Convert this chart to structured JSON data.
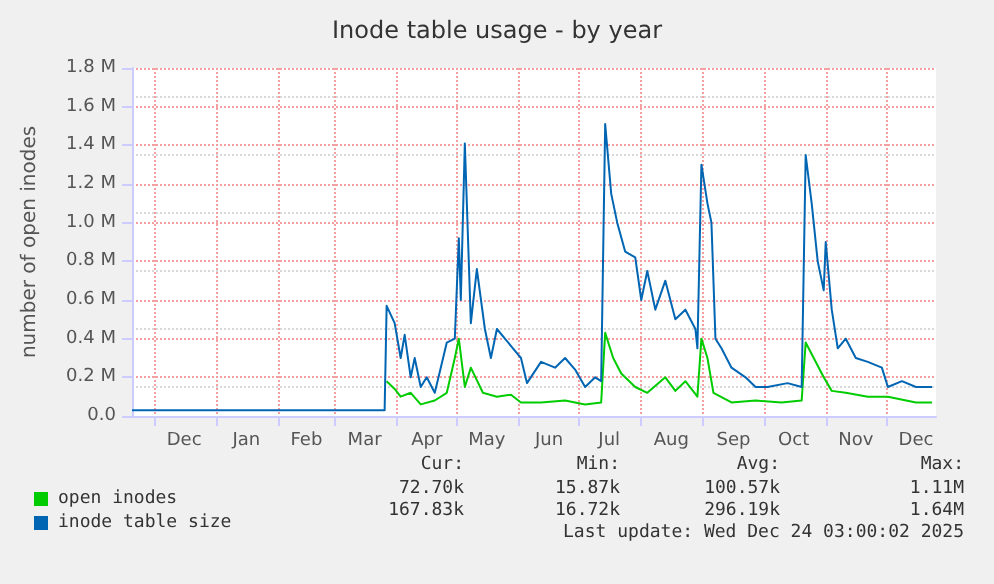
{
  "chart_data": {
    "type": "line",
    "title": "Inode table usage - by year",
    "ylabel": "number of open inodes",
    "xlim": [
      "2024-11-20",
      "2025-12-26"
    ],
    "xticks": [
      {
        "value": "2024-12-01",
        "label": null
      },
      {
        "value": "2024-12-16",
        "label": "Dec"
      },
      {
        "value": "2025-01-01",
        "label": null
      },
      {
        "value": "2025-01-16",
        "label": "Jan"
      },
      {
        "value": "2025-02-01",
        "label": null
      },
      {
        "value": "2025-02-15",
        "label": "Feb"
      },
      {
        "value": "2025-03-01",
        "label": null
      },
      {
        "value": "2025-03-16",
        "label": "Mar"
      },
      {
        "value": "2025-04-01",
        "label": null
      },
      {
        "value": "2025-04-16",
        "label": "Apr"
      },
      {
        "value": "2025-05-01",
        "label": null
      },
      {
        "value": "2025-05-16",
        "label": "May"
      },
      {
        "value": "2025-06-01",
        "label": null
      },
      {
        "value": "2025-06-16",
        "label": "Jun"
      },
      {
        "value": "2025-07-01",
        "label": null
      },
      {
        "value": "2025-07-16",
        "label": "Jul"
      },
      {
        "value": "2025-08-01",
        "label": null
      },
      {
        "value": "2025-08-16",
        "label": "Aug"
      },
      {
        "value": "2025-09-01",
        "label": null
      },
      {
        "value": "2025-09-16",
        "label": "Sep"
      },
      {
        "value": "2025-10-01",
        "label": null
      },
      {
        "value": "2025-10-16",
        "label": "Oct"
      },
      {
        "value": "2025-11-01",
        "label": null
      },
      {
        "value": "2025-11-16",
        "label": "Nov"
      },
      {
        "value": "2025-12-01",
        "label": null
      },
      {
        "value": "2025-12-16",
        "label": "Dec"
      }
    ],
    "ylim": [
      0,
      1.8
    ],
    "yticks": [
      {
        "value": 0,
        "label": "0.0"
      },
      {
        "value": 0.2,
        "label": "0.2 M"
      },
      {
        "value": 0.4,
        "label": "0.4 M"
      },
      {
        "value": 0.6,
        "label": "0.6 M"
      },
      {
        "value": 0.8,
        "label": "0.8 M"
      },
      {
        "value": 1.0,
        "label": "1.0 M"
      },
      {
        "value": 1.2,
        "label": "1.2 M"
      },
      {
        "value": 1.4,
        "label": "1.4 M"
      },
      {
        "value": 1.6,
        "label": "1.6 M"
      },
      {
        "value": 1.8,
        "label": "1.8 M"
      }
    ],
    "grid": true,
    "legend": "bottom left",
    "marker": "none",
    "line_style": "solid",
    "series": [
      {
        "name": "open inodes",
        "color": "#00cc00",
        "x": [
          "2025-03-27",
          "2025-03-31",
          "2025-04-03",
          "2025-04-08",
          "2025-04-13",
          "2025-04-20",
          "2025-04-26",
          "2025-04-30",
          "2025-05-02",
          "2025-05-05",
          "2025-05-08",
          "2025-05-14",
          "2025-05-21",
          "2025-05-28",
          "2025-06-02",
          "2025-06-12",
          "2025-06-24",
          "2025-07-04",
          "2025-07-12",
          "2025-07-14",
          "2025-07-18",
          "2025-07-22",
          "2025-07-29",
          "2025-08-04",
          "2025-08-13",
          "2025-08-18",
          "2025-08-23",
          "2025-08-29",
          "2025-08-31",
          "2025-09-03",
          "2025-09-06",
          "2025-09-15",
          "2025-09-27",
          "2025-10-10",
          "2025-10-20",
          "2025-10-22",
          "2025-10-26",
          "2025-10-31",
          "2025-11-04",
          "2025-11-11",
          "2025-11-22",
          "2025-12-02",
          "2025-12-16",
          "2025-12-24"
        ],
        "values": [
          0.18,
          0.14,
          0.1,
          0.12,
          0.06,
          0.08,
          0.12,
          0.3,
          0.4,
          0.15,
          0.25,
          0.12,
          0.1,
          0.11,
          0.07,
          0.07,
          0.08,
          0.06,
          0.07,
          0.43,
          0.3,
          0.22,
          0.15,
          0.12,
          0.2,
          0.13,
          0.18,
          0.1,
          0.4,
          0.3,
          0.12,
          0.07,
          0.08,
          0.07,
          0.08,
          0.38,
          0.3,
          0.2,
          0.13,
          0.12,
          0.1,
          0.1,
          0.07,
          0.07
        ]
      },
      {
        "name": "inode table size",
        "color": "#0066b3",
        "x": [
          "2024-11-20",
          "2024-12-15",
          "2025-01-15",
          "2025-02-15",
          "2025-03-26",
          "2025-03-27",
          "2025-03-31",
          "2025-04-03",
          "2025-04-05",
          "2025-04-08",
          "2025-04-10",
          "2025-04-13",
          "2025-04-16",
          "2025-04-20",
          "2025-04-23",
          "2025-04-26",
          "2025-04-30",
          "2025-05-02",
          "2025-05-03",
          "2025-05-05",
          "2025-05-08",
          "2025-05-11",
          "2025-05-15",
          "2025-05-18",
          "2025-05-21",
          "2025-05-25",
          "2025-05-29",
          "2025-06-02",
          "2025-06-05",
          "2025-06-12",
          "2025-06-19",
          "2025-06-24",
          "2025-06-29",
          "2025-07-04",
          "2025-07-09",
          "2025-07-12",
          "2025-07-14",
          "2025-07-17",
          "2025-07-20",
          "2025-07-24",
          "2025-07-29",
          "2025-08-01",
          "2025-08-04",
          "2025-08-08",
          "2025-08-13",
          "2025-08-18",
          "2025-08-23",
          "2025-08-28",
          "2025-08-29",
          "2025-08-31",
          "2025-09-03",
          "2025-09-05",
          "2025-09-07",
          "2025-09-10",
          "2025-09-15",
          "2025-09-22",
          "2025-09-27",
          "2025-10-03",
          "2025-10-13",
          "2025-10-20",
          "2025-10-22",
          "2025-10-25",
          "2025-10-28",
          "2025-10-31",
          "2025-11-01",
          "2025-11-04",
          "2025-11-07",
          "2025-11-11",
          "2025-11-16",
          "2025-11-22",
          "2025-11-29",
          "2025-12-02",
          "2025-12-09",
          "2025-12-16",
          "2025-12-24"
        ],
        "values": [
          0.03,
          0.03,
          0.03,
          0.03,
          0.03,
          0.57,
          0.48,
          0.3,
          0.42,
          0.2,
          0.3,
          0.15,
          0.2,
          0.12,
          0.25,
          0.38,
          0.4,
          0.92,
          0.6,
          1.41,
          0.48,
          0.76,
          0.45,
          0.3,
          0.45,
          0.4,
          0.35,
          0.3,
          0.17,
          0.28,
          0.25,
          0.3,
          0.24,
          0.15,
          0.2,
          0.18,
          1.51,
          1.15,
          1.0,
          0.85,
          0.82,
          0.6,
          0.75,
          0.55,
          0.7,
          0.5,
          0.55,
          0.45,
          0.35,
          1.3,
          1.1,
          1.0,
          0.4,
          0.35,
          0.25,
          0.2,
          0.15,
          0.15,
          0.17,
          0.15,
          1.35,
          1.1,
          0.8,
          0.65,
          0.9,
          0.55,
          0.35,
          0.4,
          0.3,
          0.28,
          0.25,
          0.15,
          0.18,
          0.15,
          0.15
        ]
      }
    ],
    "annotations": [
      "Cur:",
      "Min:",
      "Avg:",
      "Max:",
      "72.70k",
      "15.87k",
      "100.57k",
      "1.11M",
      "167.83k",
      "16.72k",
      "296.19k",
      "1.64M",
      "Last update: Wed Dec 24 03:00:02 2025"
    ]
  }
}
